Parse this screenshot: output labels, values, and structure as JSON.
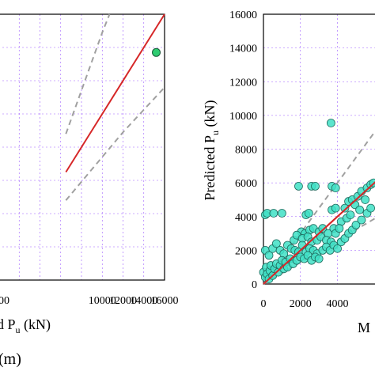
{
  "chart_data": [
    {
      "type": "scatter",
      "panel": "left",
      "xlabel_visible_part": "d P",
      "xlabel_subscript": "u",
      "xlabel_unit": " (kN)",
      "panel_caption_visible_part": "(m)",
      "xlim": [
        0,
        16000
      ],
      "ylim": [
        0,
        16000
      ],
      "x_tick_labels": [
        "10000",
        "12000",
        "14000",
        "16000"
      ],
      "x_tick_values": [
        10000,
        12000,
        14000,
        16000
      ],
      "x_partial_tick_label": "00",
      "grid": true,
      "series": [
        {
          "kind": "points",
          "color": "#2ecc71",
          "points": [
            [
              15200,
              13700
            ]
          ]
        },
        {
          "kind": "line",
          "style": "solid",
          "color": "#d62728",
          "points": [
            [
              6500,
              6500
            ],
            [
              16000,
              16000
            ]
          ]
        },
        {
          "kind": "line",
          "style": "dashed",
          "color": "#a0a0a0",
          "points": [
            [
              6500,
              8800
            ],
            [
              10000,
              14900
            ],
            [
              10700,
              16000
            ]
          ]
        },
        {
          "kind": "line",
          "style": "dashed",
          "color": "#a0a0a0",
          "points": [
            [
              6500,
              4800
            ],
            [
              12000,
              8900
            ],
            [
              16000,
              11600
            ]
          ]
        }
      ]
    },
    {
      "type": "scatter",
      "panel": "right",
      "ylabel": "Predicted P",
      "ylabel_subscript": "u",
      "ylabel_unit": " (kN)",
      "xlabel_visible_part": "M",
      "xlim": [
        0,
        6200
      ],
      "ylim": [
        0,
        16000
      ],
      "y_ticks": [
        "0",
        "2000",
        "4000",
        "6000",
        "8000",
        "10000",
        "12000",
        "14000",
        "16000"
      ],
      "y_tick_values": [
        0,
        2000,
        4000,
        6000,
        8000,
        10000,
        12000,
        14000,
        16000
      ],
      "x_ticks": [
        "0",
        "2000",
        "4000"
      ],
      "x_tick_values": [
        0,
        2000,
        4000
      ],
      "grid": true,
      "marker_color": "#3fe0c5",
      "points": [
        [
          3650,
          9550
        ],
        [
          1900,
          5800
        ],
        [
          2600,
          5800
        ],
        [
          2800,
          5800
        ],
        [
          3700,
          5800
        ],
        [
          3900,
          5700
        ],
        [
          100,
          4100
        ],
        [
          200,
          4200
        ],
        [
          550,
          4200
        ],
        [
          1000,
          4200
        ],
        [
          2300,
          4100
        ],
        [
          2450,
          4200
        ],
        [
          3700,
          4400
        ],
        [
          3900,
          4500
        ],
        [
          4400,
          4500
        ],
        [
          4600,
          4900
        ],
        [
          4800,
          5000
        ],
        [
          5100,
          5200
        ],
        [
          5300,
          5500
        ],
        [
          5600,
          5700
        ],
        [
          5800,
          5900
        ],
        [
          5950,
          6000
        ],
        [
          4950,
          4700
        ],
        [
          5200,
          4400
        ],
        [
          5500,
          5000
        ],
        [
          2050,
          3100
        ],
        [
          2250,
          3000
        ],
        [
          2500,
          3200
        ],
        [
          2700,
          3300
        ],
        [
          3000,
          3100
        ],
        [
          3200,
          3300
        ],
        [
          3500,
          3000
        ],
        [
          3800,
          3300
        ],
        [
          4200,
          3700
        ],
        [
          4500,
          3900
        ],
        [
          4700,
          4100
        ],
        [
          1650,
          2600
        ],
        [
          1800,
          2900
        ],
        [
          2100,
          2700
        ],
        [
          2400,
          2800
        ],
        [
          2600,
          2500
        ],
        [
          2900,
          2600
        ],
        [
          3100,
          2800
        ],
        [
          3400,
          2600
        ],
        [
          3650,
          2500
        ],
        [
          3900,
          3000
        ],
        [
          4100,
          3300
        ],
        [
          100,
          2000
        ],
        [
          300,
          1700
        ],
        [
          500,
          2100
        ],
        [
          700,
          2400
        ],
        [
          900,
          2000
        ],
        [
          1100,
          1800
        ],
        [
          1300,
          2300
        ],
        [
          1500,
          2100
        ],
        [
          1700,
          2000
        ],
        [
          1900,
          1900
        ],
        [
          2100,
          2300
        ],
        [
          2300,
          1900
        ],
        [
          2500,
          2100
        ],
        [
          2700,
          2000
        ],
        [
          2900,
          1800
        ],
        [
          0,
          700
        ],
        [
          100,
          400
        ],
        [
          150,
          1000
        ],
        [
          200,
          600
        ],
        [
          300,
          300
        ],
        [
          350,
          800
        ],
        [
          400,
          1100
        ],
        [
          500,
          500
        ],
        [
          600,
          900
        ],
        [
          700,
          1200
        ],
        [
          800,
          700
        ],
        [
          900,
          1100
        ],
        [
          1000,
          1400
        ],
        [
          1100,
          900
        ],
        [
          1200,
          1300
        ],
        [
          1300,
          1000
        ],
        [
          1450,
          1500
        ],
        [
          1600,
          1200
        ],
        [
          1800,
          1400
        ],
        [
          2000,
          1600
        ],
        [
          2200,
          1500
        ],
        [
          2400,
          1700
        ],
        [
          2600,
          1400
        ],
        [
          2800,
          1600
        ],
        [
          3000,
          1500
        ],
        [
          3200,
          2000
        ],
        [
          3400,
          2200
        ],
        [
          3600,
          2000
        ],
        [
          3800,
          2300
        ],
        [
          4000,
          2100
        ],
        [
          4200,
          2500
        ],
        [
          4400,
          2700
        ],
        [
          4600,
          3000
        ],
        [
          4800,
          3200
        ],
        [
          5000,
          3500
        ],
        [
          5300,
          3800
        ],
        [
          5600,
          4200
        ],
        [
          5800,
          4500
        ]
      ],
      "lines": [
        {
          "style": "solid",
          "color": "#d62728",
          "points": [
            [
              0,
              0
            ],
            [
              6200,
              6200
            ]
          ]
        },
        {
          "style": "dashed",
          "color": "#a0a0a0",
          "points": [
            [
              0,
              0
            ],
            [
              6200,
              9300
            ]
          ]
        },
        {
          "style": "dashed",
          "color": "#a0a0a0",
          "points": [
            [
              0,
              0
            ],
            [
              6200,
              4000
            ]
          ]
        }
      ]
    }
  ]
}
